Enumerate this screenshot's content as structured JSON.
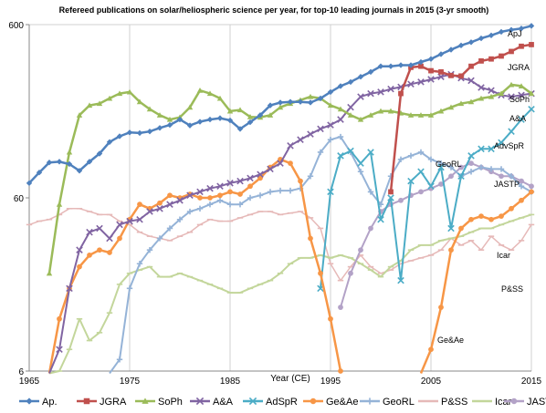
{
  "chart_data": {
    "type": "line",
    "title": "Refereed publications on solar/heliospheric science per year, for top-10 leading journals in 2015 (3-yr smooth)",
    "xlabel": "Year (CE)",
    "ylabel": "",
    "yscale": "log",
    "xlim": [
      1965,
      2015
    ],
    "ylim": [
      6,
      600
    ],
    "xticks": [
      "1965",
      "1975",
      "1985",
      "1995",
      "2005",
      "2015"
    ],
    "yticks": [
      "6",
      "60",
      "600"
    ],
    "grid": "vertical",
    "legend": "bottom",
    "series": [
      {
        "name": "Ap.",
        "label": "ApJ",
        "color": "#4f81bd",
        "x": [
          1965,
          1966,
          1967,
          1968,
          1969,
          1970,
          1971,
          1972,
          1973,
          1974,
          1975,
          1976,
          1977,
          1978,
          1979,
          1980,
          1981,
          1982,
          1983,
          1984,
          1985,
          1986,
          1987,
          1988,
          1989,
          1990,
          1991,
          1992,
          1993,
          1994,
          1995,
          1996,
          1997,
          1998,
          1999,
          2000,
          2001,
          2002,
          2003,
          2004,
          2005,
          2006,
          2007,
          2008,
          2009,
          2010,
          2011,
          2012,
          2013,
          2014,
          2015
        ],
        "y": [
          73,
          84,
          96,
          97,
          94,
          86,
          97,
          108,
          126,
          136,
          143,
          142,
          145,
          152,
          158,
          170,
          157,
          165,
          170,
          173,
          168,
          150,
          164,
          180,
          205,
          213,
          215,
          215,
          213,
          225,
          245,
          265,
          280,
          300,
          320,
          345,
          345,
          350,
          350,
          365,
          380,
          405,
          430,
          455,
          475,
          500,
          520,
          545,
          560,
          570,
          590
        ]
      },
      {
        "name": "JGRA",
        "label": "JGRA",
        "color": "#c0504d",
        "x": [
          2001,
          2002,
          2003,
          2004,
          2005,
          2006,
          2007,
          2008,
          2009,
          2010,
          2011,
          2012,
          2013,
          2014,
          2015
        ],
        "y": [
          65,
          240,
          340,
          345,
          325,
          320,
          305,
          303,
          345,
          370,
          380,
          395,
          420,
          450,
          460
        ]
      },
      {
        "name": "SoPh",
        "label": "SoPh",
        "color": "#9bbb59",
        "x": [
          1965,
          1966,
          1967,
          1968,
          1969,
          1970,
          1971,
          1972,
          1973,
          1974,
          1975,
          1976,
          1977,
          1978,
          1979,
          1980,
          1981,
          1982,
          1983,
          1984,
          1985,
          1986,
          1987,
          1988,
          1989,
          1990,
          1991,
          1992,
          1993,
          1994,
          1995,
          1996,
          1997,
          1998,
          1999,
          2000,
          2001,
          2002,
          2003,
          2004,
          2005,
          2006,
          2007,
          2008,
          2009,
          2010,
          2011,
          2012,
          2013,
          2014,
          2015
        ],
        "y": [
          null,
          null,
          22,
          55,
          110,
          180,
          205,
          210,
          225,
          240,
          245,
          215,
          195,
          180,
          170,
          175,
          200,
          250,
          240,
          225,
          190,
          193,
          176,
          175,
          180,
          200,
          210,
          220,
          230,
          225,
          205,
          195,
          180,
          170,
          180,
          190,
          190,
          185,
          180,
          180,
          180,
          190,
          200,
          210,
          215,
          225,
          230,
          240,
          270,
          265,
          240
        ]
      },
      {
        "name": "A&A",
        "label": "A&A",
        "color": "#8064a2",
        "x": [
          1967,
          1968,
          1969,
          1970,
          1971,
          1972,
          1973,
          1974,
          1975,
          1976,
          1977,
          1978,
          1979,
          1980,
          1981,
          1982,
          1983,
          1984,
          1985,
          1986,
          1987,
          1988,
          1989,
          1990,
          1991,
          1992,
          1993,
          1994,
          1995,
          1996,
          1997,
          1998,
          1999,
          2000,
          2001,
          2002,
          2003,
          2004,
          2005,
          2006,
          2007,
          2008,
          2009,
          2010,
          2011,
          2012,
          2013,
          2014,
          2015
        ],
        "y": [
          4,
          8,
          18,
          30,
          38,
          40,
          35,
          42,
          44,
          45,
          50,
          52,
          55,
          58,
          62,
          65,
          68,
          70,
          73,
          75,
          78,
          82,
          88,
          95,
          120,
          130,
          140,
          150,
          158,
          170,
          200,
          230,
          240,
          245,
          255,
          262,
          272,
          280,
          290,
          300,
          310,
          295,
          285,
          260,
          250,
          235,
          230,
          235,
          240
        ]
      },
      {
        "name": "AdSpR",
        "label": "AdvSpR",
        "color": "#4bacc6",
        "x": [
          1994,
          1995,
          1996,
          1997,
          1998,
          1999,
          2000,
          2001,
          2002,
          2003,
          2004,
          2005,
          2006,
          2007,
          2008,
          2009,
          2010,
          2011,
          2012,
          2013,
          2014,
          2015
        ],
        "y": [
          18,
          65,
          105,
          112,
          95,
          110,
          45,
          60,
          20,
          75,
          85,
          70,
          90,
          40,
          80,
          105,
          115,
          115,
          125,
          145,
          170,
          195
        ]
      },
      {
        "name": "Ge&Ae",
        "label": "Ge&Ae",
        "color": "#f79646",
        "x": [
          1967,
          1968,
          1969,
          1970,
          1971,
          1972,
          1973,
          1974,
          1975,
          1976,
          1977,
          1978,
          1979,
          1980,
          1981,
          1982,
          1983,
          1984,
          1985,
          1986,
          1987,
          1988,
          1989,
          1990,
          1991,
          1992,
          1993,
          1994,
          1995,
          1996,
          2004,
          2005,
          2006,
          2007,
          2008,
          2009,
          2010,
          2011,
          2012,
          2013,
          2014,
          2015
        ],
        "y": [
          4,
          12,
          18,
          24,
          28,
          30,
          29,
          35,
          45,
          55,
          52,
          56,
          62,
          60,
          63,
          60,
          60,
          62,
          65,
          63,
          70,
          78,
          90,
          100,
          95,
          75,
          35,
          22,
          12,
          6,
          5,
          8,
          14,
          30,
          40,
          45,
          47,
          45,
          47,
          52,
          58,
          65
        ]
      },
      {
        "name": "GeoRL",
        "label": "GeoRL",
        "color": "#95b3d7",
        "x": [
          1973,
          1974,
          1975,
          1976,
          1977,
          1978,
          1979,
          1980,
          1981,
          1982,
          1983,
          1984,
          1985,
          1986,
          1987,
          1988,
          1989,
          1990,
          1991,
          1992,
          1993,
          1994,
          1995,
          1996,
          1997,
          1998,
          1999,
          2000,
          2001,
          2002,
          2003,
          2004,
          2005,
          2006,
          2007,
          2008,
          2009,
          2010,
          2011,
          2012,
          2013,
          2014,
          2015
        ],
        "y": [
          2,
          7,
          18,
          25,
          30,
          35,
          40,
          45,
          50,
          52,
          55,
          58,
          55,
          55,
          60,
          62,
          65,
          66,
          66,
          68,
          80,
          110,
          130,
          135,
          110,
          85,
          65,
          55,
          80,
          100,
          105,
          110,
          100,
          95,
          90,
          80,
          85,
          90,
          88,
          88,
          80,
          70,
          65
        ]
      },
      {
        "name": "P&SS",
        "label": "P&SS",
        "color": "#e6b9b8",
        "x": [
          1965,
          1966,
          1967,
          1968,
          1969,
          1970,
          1971,
          1972,
          1973,
          1974,
          1975,
          1976,
          1977,
          1978,
          1979,
          1980,
          1981,
          1982,
          1983,
          1984,
          1985,
          1986,
          1987,
          1988,
          1989,
          1990,
          1991,
          1992,
          1993,
          1994,
          1995,
          1996,
          1997,
          1998,
          1999,
          2000,
          2001,
          2002,
          2003,
          2004,
          2005,
          2006,
          2007,
          2008,
          2009,
          2010,
          2011,
          2012,
          2013,
          2014,
          2015
        ],
        "y": [
          42,
          44,
          45,
          48,
          52,
          52,
          50,
          48,
          48,
          44,
          42,
          38,
          36,
          35,
          34,
          36,
          38,
          42,
          45,
          44,
          44,
          46,
          48,
          50,
          50,
          48,
          49,
          50,
          46,
          40,
          25,
          20,
          24,
          28,
          24,
          22,
          23,
          25,
          26,
          27,
          28,
          30,
          35,
          32,
          34,
          30,
          36,
          32,
          30,
          34,
          42
        ]
      },
      {
        "name": "Icar",
        "label": "Icar",
        "color": "#c3d69b",
        "x": [
          1967,
          1968,
          1969,
          1970,
          1971,
          1972,
          1973,
          1974,
          1975,
          1976,
          1977,
          1978,
          1979,
          1980,
          1981,
          1982,
          1983,
          1984,
          1985,
          1986,
          1987,
          1988,
          1989,
          1990,
          1991,
          1992,
          1993,
          1994,
          1995,
          1996,
          1997,
          1998,
          1999,
          2000,
          2001,
          2002,
          2003,
          2004,
          2005,
          2006,
          2007,
          2008,
          2009,
          2010,
          2011,
          2012,
          2013,
          2014,
          2015
        ],
        "y": [
          5,
          6,
          8,
          12,
          9,
          10,
          13,
          19,
          22,
          23,
          24,
          21,
          21,
          22,
          21,
          20,
          19,
          18,
          17,
          17,
          18,
          19,
          20,
          22,
          25,
          27,
          27,
          28,
          27,
          28,
          27,
          25,
          23,
          21,
          24,
          26,
          30,
          32,
          32,
          34,
          35,
          36,
          38,
          40,
          40,
          42,
          44,
          46,
          48
        ]
      },
      {
        "name": "JASTP",
        "label": "JASTP",
        "color": "#b3a2c7",
        "x": [
          1996,
          1997,
          1998,
          1999,
          2000,
          2001,
          2002,
          2003,
          2004,
          2005,
          2006,
          2007,
          2008,
          2009,
          2010,
          2011,
          2012,
          2013,
          2014,
          2015
        ],
        "y": [
          14,
          22,
          30,
          40,
          50,
          55,
          58,
          62,
          65,
          68,
          72,
          80,
          90,
          95,
          90,
          85,
          80,
          80,
          75,
          70
        ]
      }
    ]
  }
}
